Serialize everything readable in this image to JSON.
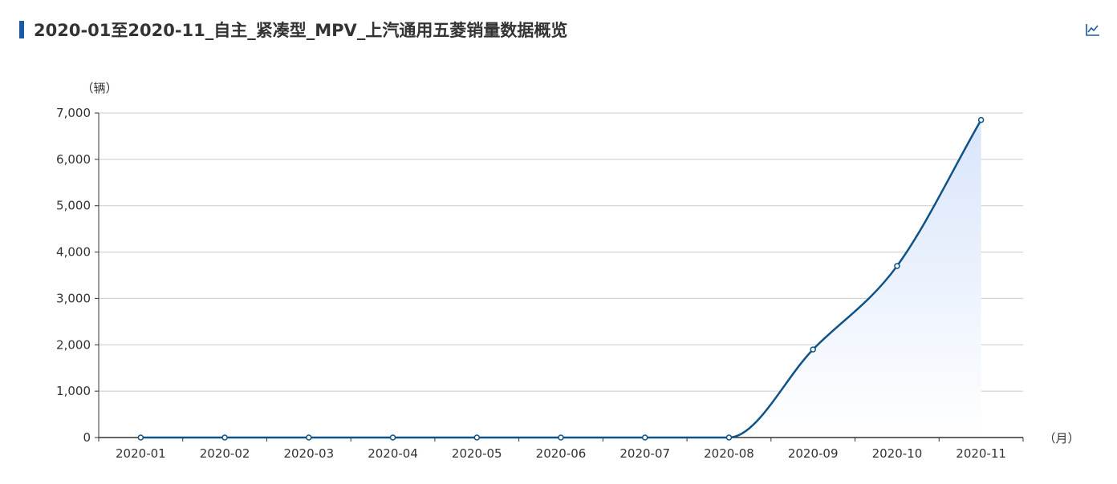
{
  "header": {
    "title": "2020-01至2020-11_自主_紧凑型_MPV_上汽通用五菱销量数据概览",
    "toolbox_icon": "line-chart-icon"
  },
  "colors": {
    "accent": "#1d5aa6",
    "line": "#0f5288",
    "area_top": "#d8e5fb",
    "area_bottom": "#ffffff",
    "grid": "#cccccc",
    "axis": "#333333"
  },
  "chart_data": {
    "type": "area",
    "categories": [
      "2020-01",
      "2020-02",
      "2020-03",
      "2020-04",
      "2020-05",
      "2020-06",
      "2020-07",
      "2020-08",
      "2020-09",
      "2020-10",
      "2020-11"
    ],
    "series": [
      {
        "values": [
          0,
          0,
          0,
          0,
          0,
          0,
          0,
          0,
          1900,
          3700,
          6850
        ]
      }
    ],
    "ylabel": "（辆）",
    "xlabel": "（月）",
    "ylim": [
      0,
      7000
    ],
    "yticks": [
      0,
      1000,
      2000,
      3000,
      4000,
      5000,
      6000,
      7000
    ],
    "ytick_labels": [
      "0",
      "1,000",
      "2,000",
      "3,000",
      "4,000",
      "5,000",
      "6,000",
      "7,000"
    ],
    "smooth": true,
    "grid": true,
    "legend": "none"
  }
}
